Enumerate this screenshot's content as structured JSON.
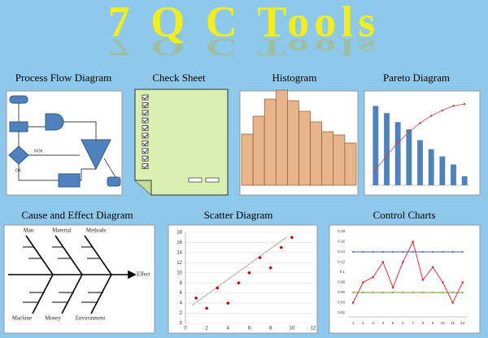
{
  "title": "7 Q C Tools",
  "tools": [
    "Process Flow  Diagram",
    "Check Sheet",
    "Histogram",
    "Pareto Diagram",
    "Cause and Effect Diagram",
    "Scatter Diagram",
    "Control Charts"
  ],
  "process_flow": {
    "decision_labels": [
      "NOK",
      "OK"
    ]
  },
  "histogram": {
    "values": [
      63,
      85,
      106,
      117,
      104,
      91,
      78,
      66,
      62,
      52
    ],
    "ylim": [
      0,
      120
    ],
    "color": "#e8b48c"
  },
  "pareto": {
    "values": [
      8.8,
      8,
      7,
      6.2,
      5,
      4,
      3.2,
      2.3,
      1
    ],
    "cumulative": [
      17,
      33,
      47,
      59,
      69,
      77,
      83,
      88,
      90
    ],
    "ylim": [
      0,
      10
    ],
    "y2lim": [
      0,
      100
    ],
    "color": "#4f81bd",
    "line_color": "#c0504d"
  },
  "cause_effect": {
    "effect": "Effect",
    "causes_top": [
      "Man",
      "Material",
      "Methods"
    ],
    "causes_bottom": [
      "Machine",
      "Money",
      "Environment"
    ]
  },
  "scatter": {
    "x": [
      1,
      2,
      3,
      4,
      5,
      6,
      7,
      8,
      9,
      10
    ],
    "y": [
      5,
      3,
      7,
      4,
      8,
      10,
      13,
      11,
      15,
      17
    ],
    "xlim": [
      0,
      12
    ],
    "ylim": [
      0,
      18
    ],
    "xticks": [
      0,
      2,
      4,
      6,
      8,
      10,
      12
    ],
    "yticks": [
      0,
      2,
      4,
      6,
      8,
      10,
      12,
      14,
      16,
      18
    ],
    "color": "#c00000"
  },
  "control": {
    "x": [
      1,
      2,
      3,
      4,
      5,
      6,
      7,
      8,
      9,
      10,
      11,
      12
    ],
    "values": [
      0.04,
      0.08,
      0.09,
      0.12,
      0.07,
      0.12,
      0.16,
      0.085,
      0.11,
      0.08,
      0.04,
      0.08
    ],
    "ucl": 0.14,
    "lcl": 0.06,
    "xlim": [
      0.5,
      12.5
    ],
    "ylim": [
      0.02,
      0.18
    ],
    "yticks": [
      0.02,
      0.04,
      0.06,
      0.08,
      0.1,
      0.12,
      0.14,
      0.16,
      0.18
    ],
    "color": "#e0303a"
  }
}
